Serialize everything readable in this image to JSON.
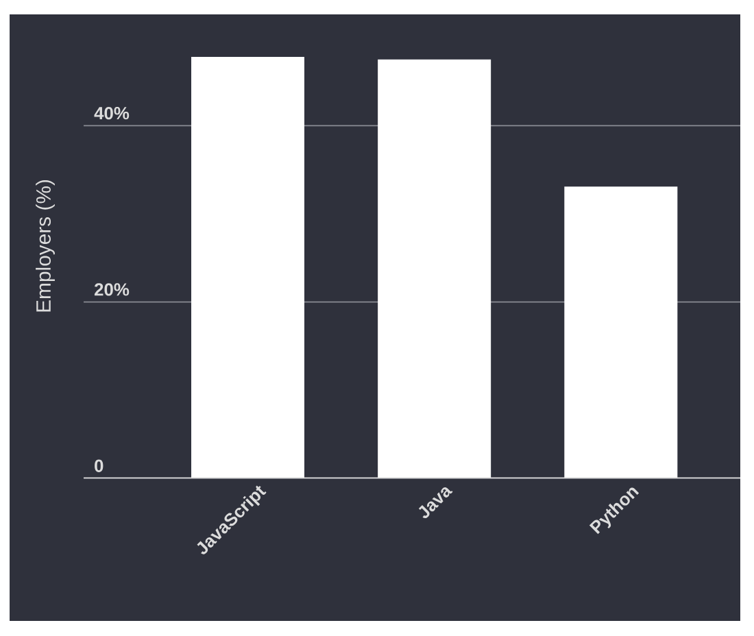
{
  "chart_data": {
    "type": "bar",
    "ylabel": "Employers (%)",
    "categories": [
      "JavaScript",
      "Java",
      "Python"
    ],
    "values": [
      47.8,
      47.5,
      33.1
    ],
    "color": "#ffffff",
    "ylim": [
      0,
      52.7
    ],
    "yticks": [
      0,
      {
        "value": 20,
        "label": "20%"
      },
      {
        "value": 40,
        "label": "40%"
      }
    ],
    "grid": "y"
  }
}
